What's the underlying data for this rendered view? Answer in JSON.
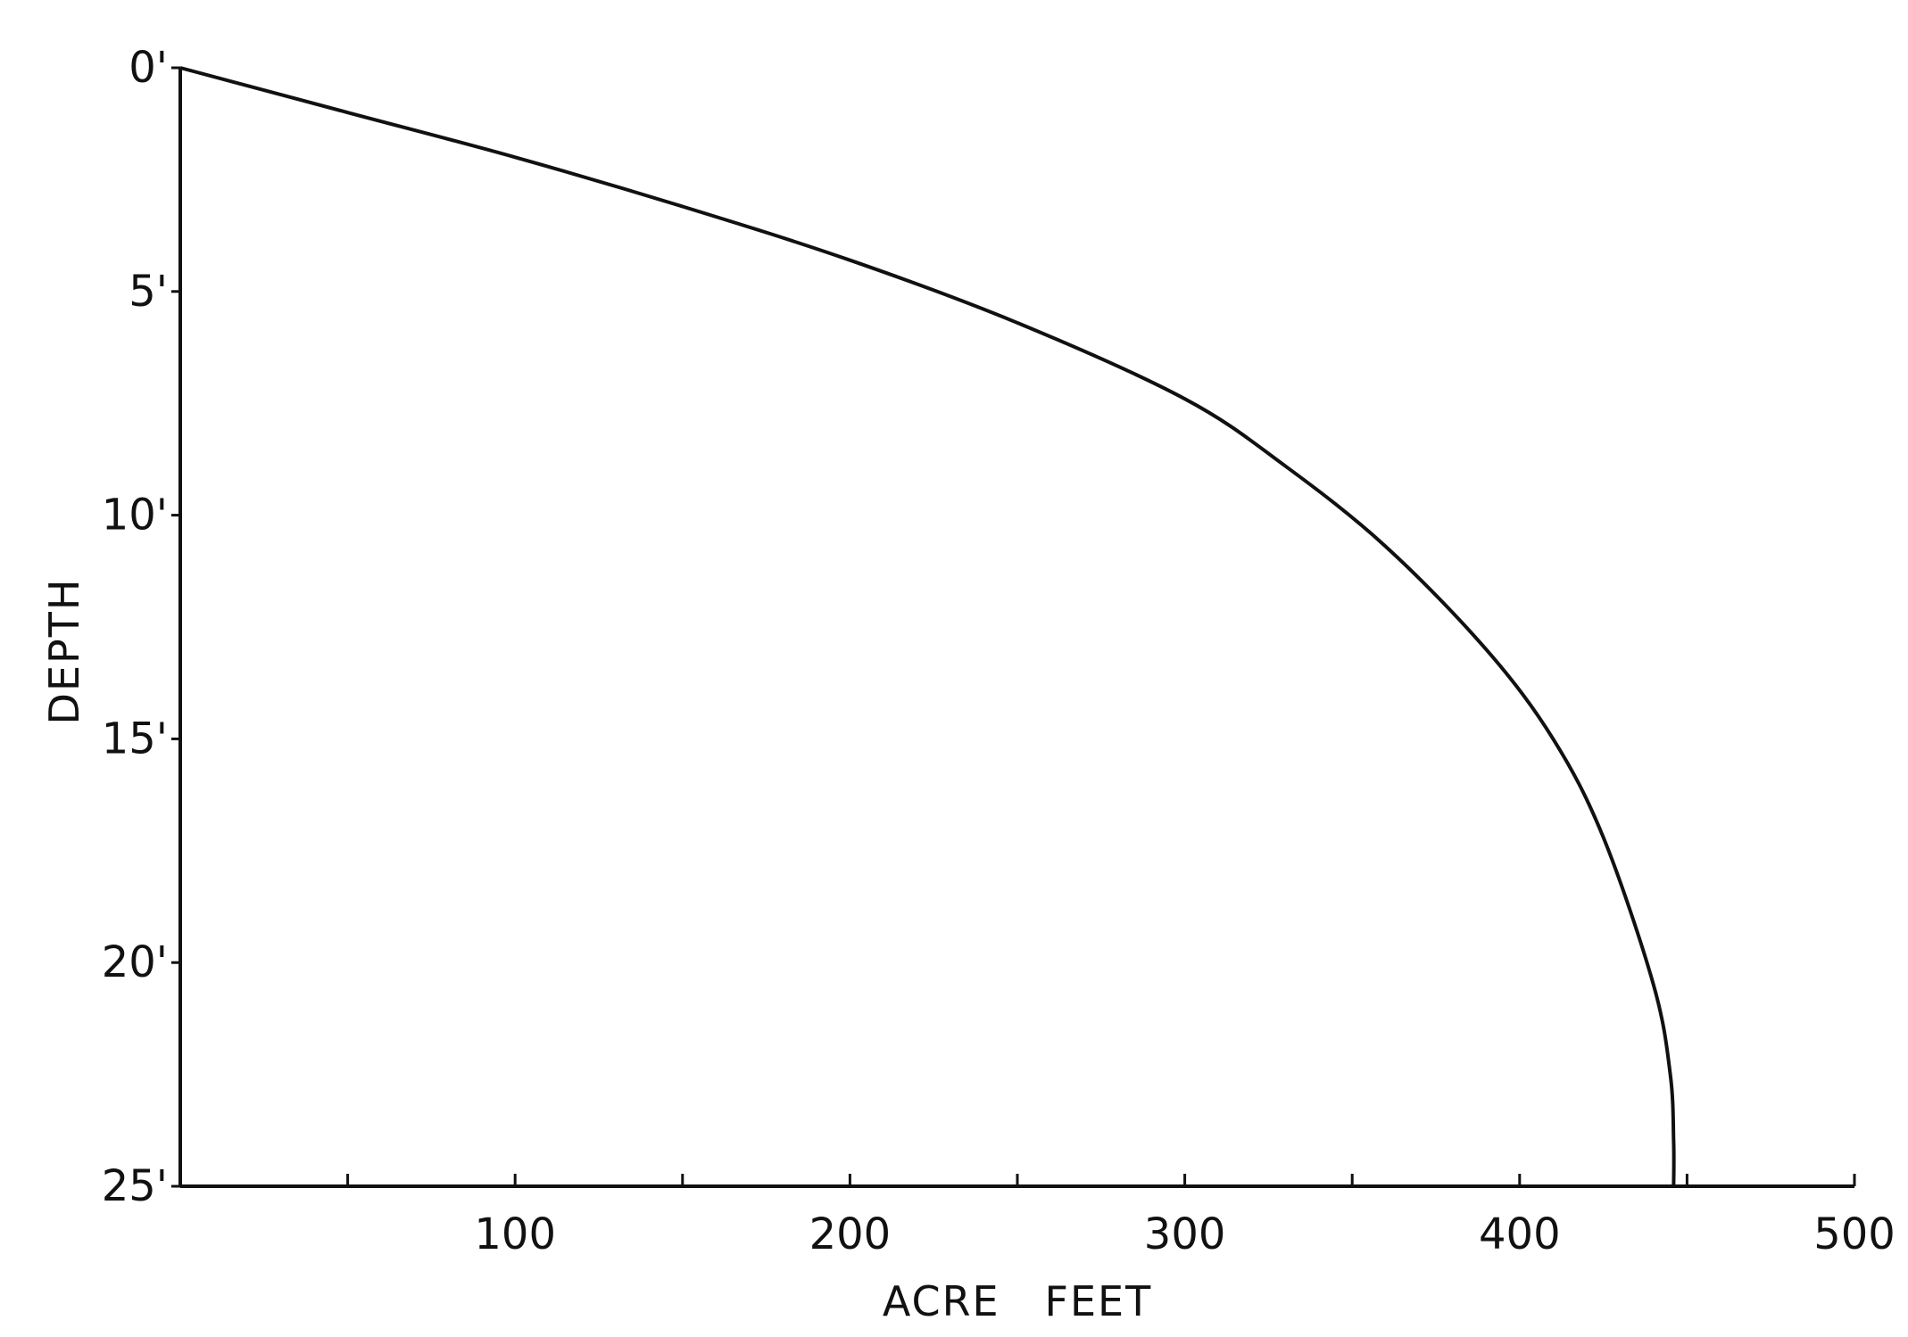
{
  "chart_data": {
    "type": "line",
    "title": "",
    "xlabel": "ACRE   FEET",
    "ylabel": "DEPTH",
    "xlim": [
      0,
      500
    ],
    "ylim": [
      25,
      0
    ],
    "y_inverted": true,
    "grid": false,
    "x_ticks": [
      {
        "value": 50,
        "label": ""
      },
      {
        "value": 100,
        "label": "100"
      },
      {
        "value": 150,
        "label": ""
      },
      {
        "value": 200,
        "label": "200"
      },
      {
        "value": 250,
        "label": ""
      },
      {
        "value": 300,
        "label": "300"
      },
      {
        "value": 350,
        "label": ""
      },
      {
        "value": 400,
        "label": "400"
      },
      {
        "value": 450,
        "label": ""
      },
      {
        "value": 500,
        "label": "500"
      }
    ],
    "y_ticks": [
      {
        "value": 0,
        "label": "0'"
      },
      {
        "value": 5,
        "label": "5'"
      },
      {
        "value": 10,
        "label": "10'"
      },
      {
        "value": 15,
        "label": "15'"
      },
      {
        "value": 20,
        "label": "20'"
      },
      {
        "value": 25,
        "label": "25'"
      }
    ],
    "series": [
      {
        "x": [
          0,
          50,
          100,
          150,
          200,
          250,
          300,
          330,
          360,
          390,
          410,
          425,
          440,
          445,
          446,
          446
        ],
        "y": [
          0,
          1.0,
          2.0,
          3.1,
          4.3,
          5.7,
          7.4,
          8.9,
          10.7,
          13.0,
          15.0,
          17.2,
          20.5,
          22.5,
          24.0,
          25.0
        ]
      }
    ],
    "style": {
      "line_color": "#111111",
      "background": "#ffffff"
    }
  }
}
